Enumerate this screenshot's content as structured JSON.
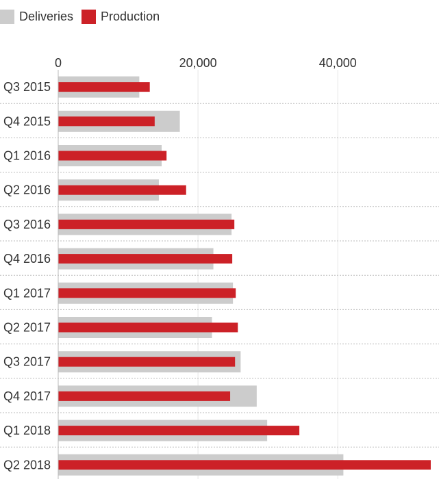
{
  "chart_data": {
    "type": "bar",
    "orientation": "horizontal",
    "categories": [
      "Q3 2015",
      "Q4 2015",
      "Q1 2016",
      "Q2 2016",
      "Q3 2016",
      "Q4 2016",
      "Q1 2017",
      "Q2 2017",
      "Q3 2017",
      "Q4 2017",
      "Q1 2018",
      "Q2 2018"
    ],
    "series": [
      {
        "name": "Deliveries",
        "color": "#cccccc",
        "values": [
          11600,
          17400,
          14800,
          14400,
          24800,
          22200,
          25000,
          22000,
          26100,
          28400,
          29900,
          40800
        ]
      },
      {
        "name": "Production",
        "color": "#cc2127",
        "values": [
          13100,
          13800,
          15500,
          18300,
          25200,
          24900,
          25400,
          25700,
          25300,
          24600,
          34500,
          53300
        ]
      }
    ],
    "xaxis": {
      "ticks": [
        0,
        20000,
        40000
      ],
      "tick_labels": [
        "0",
        "20,000",
        "40,000"
      ],
      "range": [
        0,
        53500
      ],
      "position": "top"
    },
    "grid": true,
    "legend_position": "top-left",
    "title": "",
    "xlabel": "",
    "ylabel": ""
  }
}
